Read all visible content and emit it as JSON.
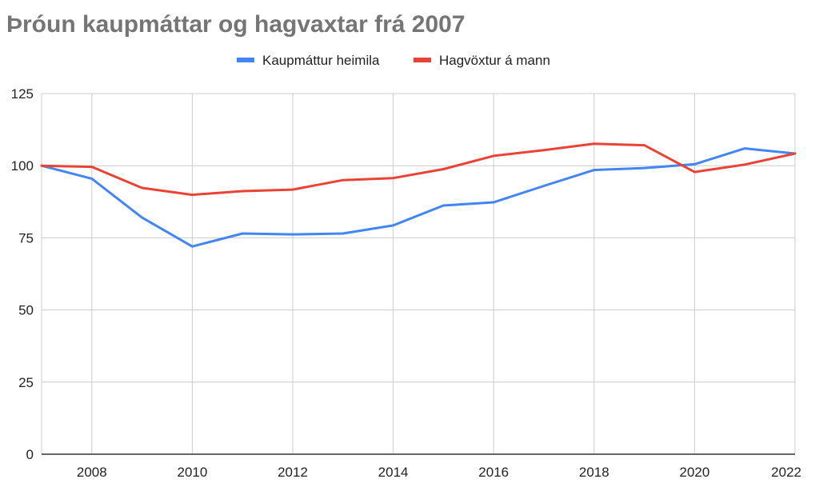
{
  "chart_data": {
    "type": "line",
    "title": "Þróun kaupmáttar og hagvaxtar frá 2007",
    "xlabel": "",
    "ylabel": "",
    "x": [
      2007,
      2008,
      2009,
      2010,
      2011,
      2012,
      2013,
      2014,
      2015,
      2016,
      2017,
      2018,
      2019,
      2020,
      2021,
      2022
    ],
    "xlim": [
      2007,
      2022
    ],
    "ylim": [
      0,
      125
    ],
    "x_ticks": [
      "2008",
      "2010",
      "2012",
      "2014",
      "2016",
      "2018",
      "2020",
      "2022"
    ],
    "y_ticks": [
      "0",
      "25",
      "50",
      "75",
      "100",
      "125"
    ],
    "grid": true,
    "legend_position": "top-center",
    "series": [
      {
        "name": "Kaupmáttur heimila",
        "color": "#4285F4",
        "values": [
          100,
          95.5,
          82,
          72,
          76.5,
          76.2,
          76.5,
          79.3,
          86.2,
          87.3,
          93,
          98.5,
          99.2,
          100.5,
          106,
          104.2
        ]
      },
      {
        "name": "Hagvöxtur á mann",
        "color": "#EA4335",
        "values": [
          100,
          99.6,
          92.3,
          89.9,
          91.2,
          91.7,
          95,
          95.7,
          98.8,
          103.4,
          105.4,
          107.6,
          107.1,
          97.8,
          100.4,
          104.2
        ]
      }
    ]
  }
}
